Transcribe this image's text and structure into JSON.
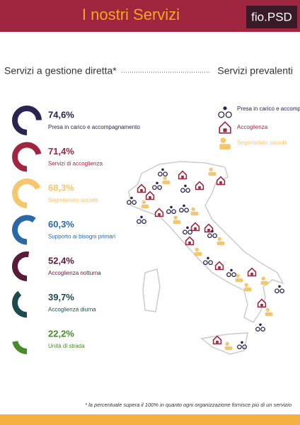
{
  "header": {
    "title": "I nostri Servizi",
    "brand": "fio.PSD"
  },
  "left_heading": "Servizi a gestione diretta*",
  "right_heading": "Servizi prevalenti",
  "chart_data": {
    "type": "donut",
    "categories": [
      "Presa in carico e accompagnamento",
      "Servizi di accoglienza",
      "Segretariato sociale",
      "Supporto ai bisogni primari",
      "Accoglienza notturna",
      "Accoglienza diurna",
      "Unità di strada"
    ],
    "values": [
      74.6,
      71.4,
      68.3,
      60.3,
      52.4,
      39.7,
      22.2
    ],
    "value_labels": [
      "74,6%",
      "71,4%",
      "68,3%",
      "60,3%",
      "52,4%",
      "39,7%",
      "22,2%"
    ],
    "colors": [
      "#2b2350",
      "#a0263f",
      "#f5c66b",
      "#2b68a8",
      "#5a1a3a",
      "#1e4a4f",
      "#4a8a2a"
    ]
  },
  "legend": [
    {
      "label": "Presa in carico e accompagnamento",
      "color": "#2b2350"
    },
    {
      "label": "Accoglienza",
      "color": "#a0263f"
    },
    {
      "label": "Segretariato sociale",
      "color": "#f5c66b"
    }
  ],
  "footnote": "* la percentuale supera il 100% in quanto ogni organizzazione fornisce più di un servizio"
}
